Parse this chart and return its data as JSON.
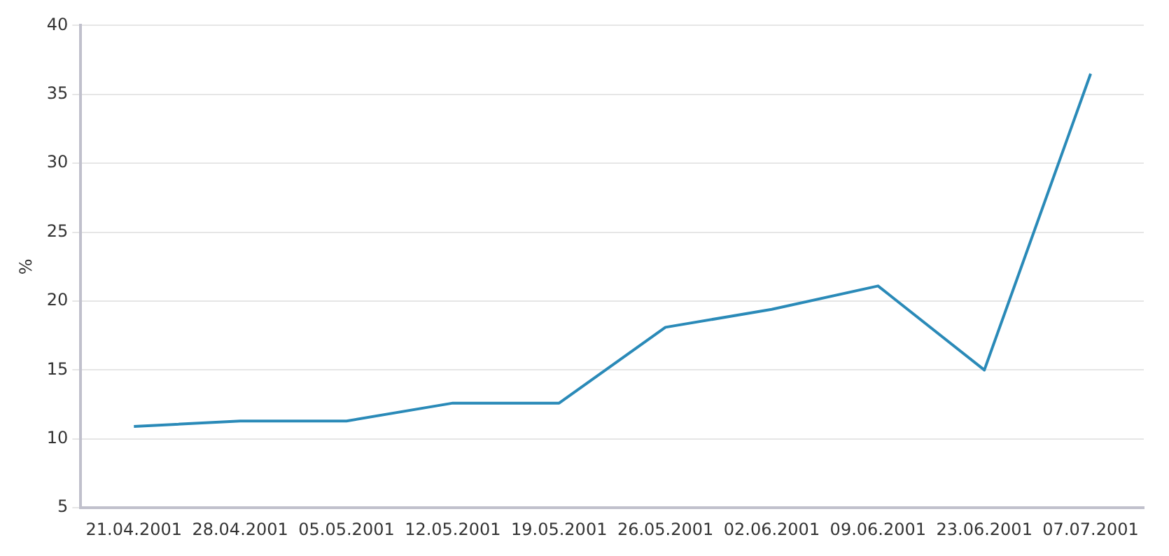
{
  "chart_data": {
    "type": "line",
    "ylabel": "%",
    "categories": [
      "21.04.2001",
      "28.04.2001",
      "05.05.2001",
      "12.05.2001",
      "19.05.2001",
      "26.05.2001",
      "02.06.2001",
      "09.06.2001",
      "23.06.2001",
      "07.07.2001"
    ],
    "series": [
      {
        "color": "#2a8ab8",
        "values": [
          10.9,
          11.3,
          11.3,
          12.6,
          12.6,
          18.1,
          19.4,
          21.1,
          15.0,
          36.5
        ]
      }
    ],
    "ylim": [
      5,
      40
    ],
    "yticks": [
      5,
      10,
      15,
      20,
      25,
      30,
      35,
      40
    ],
    "grid": "y",
    "legend": false,
    "marker": "none",
    "line_style": "solid"
  }
}
